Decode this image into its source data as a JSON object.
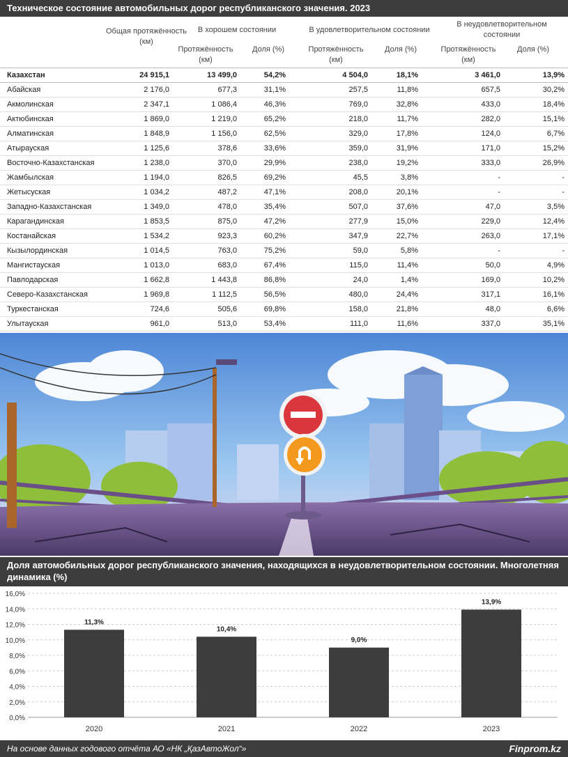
{
  "table": {
    "title": "Техническое состояние автомобильных дорог республиканского значения. 2023",
    "headers": {
      "total_length": "Общая протяжённость (км)",
      "good": "В хорошем состоянии",
      "satisfactory": "В удовлетворительном состоянии",
      "unsatisfactory": "В неудовлетворительном состоянии",
      "length_km": "Протяжённость (км)",
      "share": "Доля (%)"
    },
    "rows": [
      {
        "name": "Казахстан",
        "total": "24 915,1",
        "good_len": "13 499,0",
        "good_share": "54,2%",
        "sat_len": "4 504,0",
        "sat_share": "18,1%",
        "bad_len": "3 461,0",
        "bad_share": "13,9%"
      },
      {
        "name": "Абайская",
        "total": "2 176,0",
        "good_len": "677,3",
        "good_share": "31,1%",
        "sat_len": "257,5",
        "sat_share": "11,8%",
        "bad_len": "657,5",
        "bad_share": "30,2%"
      },
      {
        "name": "Акмолинская",
        "total": "2 347,1",
        "good_len": "1 086,4",
        "good_share": "46,3%",
        "sat_len": "769,0",
        "sat_share": "32,8%",
        "bad_len": "433,0",
        "bad_share": "18,4%"
      },
      {
        "name": "Актюбинская",
        "total": "1 869,0",
        "good_len": "1 219,0",
        "good_share": "65,2%",
        "sat_len": "218,0",
        "sat_share": "11,7%",
        "bad_len": "282,0",
        "bad_share": "15,1%"
      },
      {
        "name": "Алматинская",
        "total": "1 848,9",
        "good_len": "1 156,0",
        "good_share": "62,5%",
        "sat_len": "329,0",
        "sat_share": "17,8%",
        "bad_len": "124,0",
        "bad_share": "6,7%"
      },
      {
        "name": "Атырауская",
        "total": "1 125,6",
        "good_len": "378,6",
        "good_share": "33,6%",
        "sat_len": "359,0",
        "sat_share": "31,9%",
        "bad_len": "171,0",
        "bad_share": "15,2%"
      },
      {
        "name": "Восточно-Казахстанская",
        "total": "1 238,0",
        "good_len": "370,0",
        "good_share": "29,9%",
        "sat_len": "238,0",
        "sat_share": "19,2%",
        "bad_len": "333,0",
        "bad_share": "26,9%"
      },
      {
        "name": "Жамбылская",
        "total": "1 194,0",
        "good_len": "826,5",
        "good_share": "69,2%",
        "sat_len": "45,5",
        "sat_share": "3,8%",
        "bad_len": "-",
        "bad_share": "-"
      },
      {
        "name": "Жетысуская",
        "total": "1 034,2",
        "good_len": "487,2",
        "good_share": "47,1%",
        "sat_len": "208,0",
        "sat_share": "20,1%",
        "bad_len": "-",
        "bad_share": "-"
      },
      {
        "name": "Западно-Казахстанская",
        "total": "1 349,0",
        "good_len": "478,0",
        "good_share": "35,4%",
        "sat_len": "507,0",
        "sat_share": "37,6%",
        "bad_len": "47,0",
        "bad_share": "3,5%"
      },
      {
        "name": "Карагандинская",
        "total": "1 853,5",
        "good_len": "875,0",
        "good_share": "47,2%",
        "sat_len": "277,9",
        "sat_share": "15,0%",
        "bad_len": "229,0",
        "bad_share": "12,4%"
      },
      {
        "name": "Костанайская",
        "total": "1 534,2",
        "good_len": "923,3",
        "good_share": "60,2%",
        "sat_len": "347,9",
        "sat_share": "22,7%",
        "bad_len": "263,0",
        "bad_share": "17,1%"
      },
      {
        "name": "Кызылординская",
        "total": "1 014,5",
        "good_len": "763,0",
        "good_share": "75,2%",
        "sat_len": "59,0",
        "sat_share": "5,8%",
        "bad_len": "-",
        "bad_share": "-"
      },
      {
        "name": "Мангистауская",
        "total": "1 013,0",
        "good_len": "683,0",
        "good_share": "67,4%",
        "sat_len": "115,0",
        "sat_share": "11,4%",
        "bad_len": "50,0",
        "bad_share": "4,9%"
      },
      {
        "name": "Павлодарская",
        "total": "1 662,8",
        "good_len": "1 443,8",
        "good_share": "86,8%",
        "sat_len": "24,0",
        "sat_share": "1,4%",
        "bad_len": "169,0",
        "bad_share": "10,2%"
      },
      {
        "name": "Северо-Казахстанская",
        "total": "1 969,8",
        "good_len": "1 112,5",
        "good_share": "56,5%",
        "sat_len": "480,0",
        "sat_share": "24,4%",
        "bad_len": "317,1",
        "bad_share": "16,1%"
      },
      {
        "name": "Туркестанская",
        "total": "724,6",
        "good_len": "505,6",
        "good_share": "69,8%",
        "sat_len": "158,0",
        "sat_share": "21,8%",
        "bad_len": "48,0",
        "bad_share": "6,6%"
      },
      {
        "name": "Улытауская",
        "total": "961,0",
        "good_len": "513,0",
        "good_share": "53,4%",
        "sat_len": "111,0",
        "sat_share": "11,6%",
        "bad_len": "337,0",
        "bad_share": "35,1%"
      }
    ]
  },
  "chart_title": "Доля автомобильных дорог республиканского значения, находящихся в неудовлетворительном состоянии. Многолетняя динамика (%)",
  "chart_data": {
    "type": "bar",
    "categories": [
      "2020",
      "2021",
      "2022",
      "2023"
    ],
    "values": [
      11.3,
      10.4,
      9.0,
      13.9
    ],
    "value_labels": [
      "11,3%",
      "10,4%",
      "9,0%",
      "13,9%"
    ],
    "ylim": [
      0,
      16
    ],
    "yticks": [
      "0,0%",
      "2,0%",
      "4,0%",
      "6,0%",
      "8,0%",
      "10,0%",
      "12,0%",
      "14,0%",
      "16,0%"
    ],
    "grid": true,
    "bar_color": "#3d3d3d"
  },
  "footer": {
    "source": "На основе данных годового отчёта АО «НК „ҚазАвтоЖол“»",
    "brand": "Finprom.kz"
  },
  "illustration": {
    "icons": [
      "no-entry-sign-icon",
      "u-turn-sign-icon",
      "street-lamp-icon",
      "city-skyline-icon"
    ]
  },
  "colors": {
    "header_bg": "#3d3d3d",
    "sky": "#7fb3e6",
    "road": "#5b4a7a",
    "no_entry_red": "#d9363e",
    "u_turn_orange": "#f39a1e"
  }
}
